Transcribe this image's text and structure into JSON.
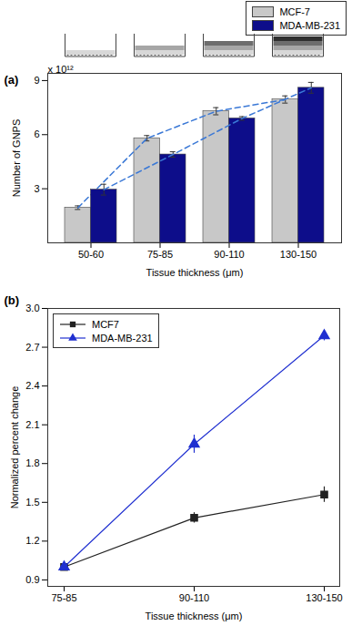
{
  "chart_data": [
    {
      "type": "bar",
      "annotations": [
        "(a)",
        "x 10¹²"
      ],
      "xlabel": "Tissue thickness (μm)",
      "ylabel": "Number of GNPS",
      "categories": [
        "50-60",
        "75-85",
        "90-110",
        "130-150"
      ],
      "series": [
        {
          "name": "MCF-7",
          "color": "#c8c8c8",
          "values": [
            1.95,
            5.8,
            7.3,
            7.95
          ],
          "errors": [
            0.1,
            0.15,
            0.2,
            0.2
          ]
        },
        {
          "name": "MDA-MB-231",
          "color": "#0d0d8a",
          "values": [
            2.95,
            4.9,
            6.9,
            8.6
          ],
          "errors": [
            0.3,
            0.15,
            0.1,
            0.3
          ]
        }
      ],
      "ylim": [
        0,
        9.4
      ],
      "yticks": [
        3,
        6,
        9
      ],
      "legend": "top-right"
    },
    {
      "type": "line",
      "annotations": [
        "(b)"
      ],
      "xlabel": "Tissue thickness (μm)",
      "ylabel": "Normalized percent change",
      "categories": [
        "75-85",
        "90-110",
        "130-150"
      ],
      "series": [
        {
          "name": "MCF7",
          "color": "#222222",
          "marker": "square",
          "values": [
            1.0,
            1.38,
            1.56
          ],
          "errors": [
            0.02,
            0.04,
            0.06
          ]
        },
        {
          "name": "MDA-MB-231",
          "color": "#1f2fd0",
          "marker": "triangle",
          "values": [
            1.0,
            1.95,
            2.79
          ],
          "errors": [
            0.03,
            0.07,
            0.04
          ]
        }
      ],
      "ylim": [
        0.85,
        3.0
      ],
      "yticks": [
        0.9,
        1.2,
        1.5,
        1.8,
        2.1,
        2.4,
        2.7,
        {
          "value": 3,
          "label": "3.0"
        }
      ],
      "legend": "top-left"
    }
  ]
}
